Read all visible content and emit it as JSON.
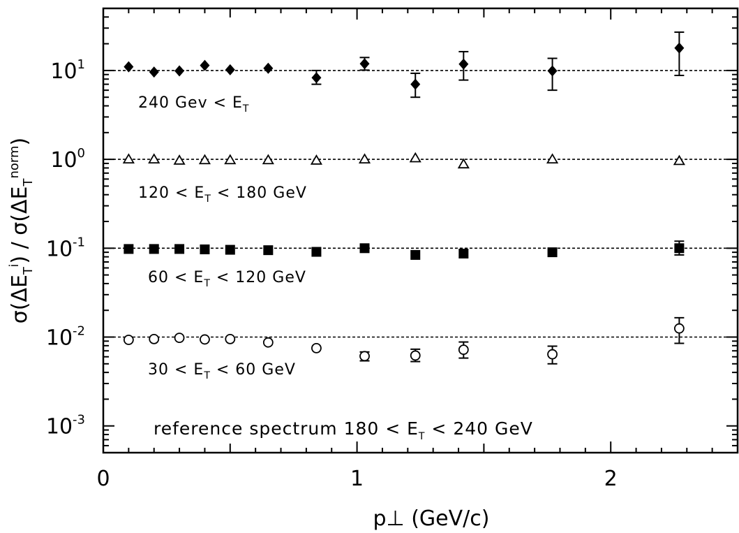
{
  "chart_data": {
    "type": "scatter",
    "title": "",
    "xlabel": "p⊥ (GeV/c)",
    "ylabel": "σ(ΔE_T^i) / σ(ΔE_T^norm)",
    "xlim": [
      0,
      2.5
    ],
    "ylim": [
      0.0005,
      50
    ],
    "yscale": "log",
    "grid": false,
    "x_ticks": [
      {
        "value": 0,
        "label": "0"
      },
      {
        "value": 1,
        "label": "1"
      },
      {
        "value": 2,
        "label": "2"
      }
    ],
    "y_ticks": [
      {
        "value": 10,
        "base": "10",
        "exp": "1"
      },
      {
        "value": 1,
        "base": "10",
        "exp": "0"
      },
      {
        "value": 0.1,
        "base": "10",
        "exp": "-1"
      },
      {
        "value": 0.01,
        "base": "10",
        "exp": "-2"
      },
      {
        "value": 0.001,
        "base": "10",
        "exp": "-3"
      }
    ],
    "reference_lines": [
      10,
      1,
      0.1,
      0.01
    ],
    "reference_label": {
      "text": "reference spectrum 180 < E",
      "sub": "T",
      "tail": " < 240 GeV"
    },
    "series": [
      {
        "marker": "filled-diamond",
        "label": {
          "pre": "240 Gev < E",
          "sub": "T",
          "post": ""
        },
        "points": [
          {
            "x": 0.1,
            "y": 11.0
          },
          {
            "x": 0.2,
            "y": 9.6
          },
          {
            "x": 0.3,
            "y": 9.9
          },
          {
            "x": 0.4,
            "y": 11.4
          },
          {
            "x": 0.5,
            "y": 10.2
          },
          {
            "x": 0.65,
            "y": 10.6
          },
          {
            "x": 0.84,
            "y": 8.3,
            "lo": 7.0,
            "hi": 10.0
          },
          {
            "x": 1.03,
            "y": 11.9,
            "lo": 10.1,
            "hi": 14.0
          },
          {
            "x": 1.23,
            "y": 7.0,
            "lo": 5.0,
            "hi": 9.3
          },
          {
            "x": 1.42,
            "y": 11.8,
            "lo": 7.8,
            "hi": 16.3
          },
          {
            "x": 1.77,
            "y": 9.9,
            "lo": 6.0,
            "hi": 13.7
          },
          {
            "x": 2.27,
            "y": 17.9,
            "lo": 8.8,
            "hi": 27.0
          }
        ]
      },
      {
        "marker": "open-triangle",
        "label": {
          "pre": "120 < E",
          "sub": "T",
          "post": " < 180 GeV"
        },
        "points": [
          {
            "x": 0.1,
            "y": 1.0
          },
          {
            "x": 0.2,
            "y": 1.0
          },
          {
            "x": 0.3,
            "y": 0.97
          },
          {
            "x": 0.4,
            "y": 0.98
          },
          {
            "x": 0.5,
            "y": 0.98
          },
          {
            "x": 0.65,
            "y": 0.98
          },
          {
            "x": 0.84,
            "y": 0.97
          },
          {
            "x": 1.03,
            "y": 1.0
          },
          {
            "x": 1.23,
            "y": 1.03
          },
          {
            "x": 1.42,
            "y": 0.88
          },
          {
            "x": 1.77,
            "y": 1.0
          },
          {
            "x": 2.27,
            "y": 0.96
          }
        ]
      },
      {
        "marker": "filled-square",
        "label": {
          "pre": "60 < E",
          "sub": "T",
          "post": " < 120 GeV"
        },
        "points": [
          {
            "x": 0.1,
            "y": 0.098
          },
          {
            "x": 0.2,
            "y": 0.098
          },
          {
            "x": 0.3,
            "y": 0.098
          },
          {
            "x": 0.4,
            "y": 0.097
          },
          {
            "x": 0.5,
            "y": 0.096
          },
          {
            "x": 0.65,
            "y": 0.095
          },
          {
            "x": 0.84,
            "y": 0.091
          },
          {
            "x": 1.03,
            "y": 0.1
          },
          {
            "x": 1.23,
            "y": 0.084
          },
          {
            "x": 1.42,
            "y": 0.087
          },
          {
            "x": 1.77,
            "y": 0.09
          },
          {
            "x": 2.27,
            "y": 0.1,
            "lo": 0.084,
            "hi": 0.12
          }
        ]
      },
      {
        "marker": "open-circle",
        "label": {
          "pre": "30 < E",
          "sub": "T",
          "post": " < 60 GeV"
        },
        "points": [
          {
            "x": 0.1,
            "y": 0.0093
          },
          {
            "x": 0.2,
            "y": 0.0095
          },
          {
            "x": 0.3,
            "y": 0.0098
          },
          {
            "x": 0.4,
            "y": 0.0094
          },
          {
            "x": 0.5,
            "y": 0.0095
          },
          {
            "x": 0.65,
            "y": 0.0087
          },
          {
            "x": 0.84,
            "y": 0.0075
          },
          {
            "x": 1.03,
            "y": 0.0061,
            "lo": 0.0054,
            "hi": 0.0068
          },
          {
            "x": 1.23,
            "y": 0.0062,
            "lo": 0.0053,
            "hi": 0.0073
          },
          {
            "x": 1.42,
            "y": 0.0072,
            "lo": 0.0058,
            "hi": 0.0088
          },
          {
            "x": 1.77,
            "y": 0.0064,
            "lo": 0.005,
            "hi": 0.0079
          },
          {
            "x": 2.27,
            "y": 0.0125,
            "lo": 0.0085,
            "hi": 0.0165
          }
        ]
      }
    ]
  }
}
